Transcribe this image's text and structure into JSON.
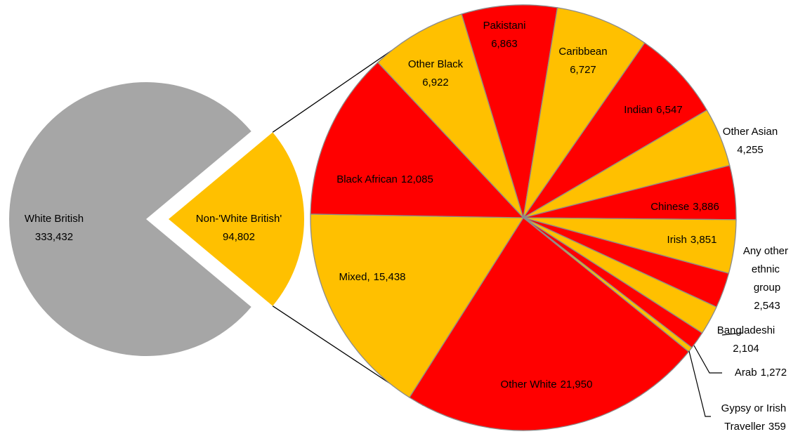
{
  "chart_data": {
    "type": "pie",
    "primary": {
      "categories": [
        "White British",
        "Non-'White British'"
      ],
      "values": [
        333432,
        94802
      ],
      "value_labels": [
        "333,432",
        "94,802"
      ],
      "colors": [
        "#a6a6a6",
        "#ffc000"
      ]
    },
    "secondary": {
      "categories": [
        "Other White",
        "Mixed,",
        "Black African",
        "Other Black",
        "Pakistani",
        "Caribbean",
        "Indian",
        "Other Asian",
        "Chinese",
        "Irish",
        "Any other ethnic group",
        "Bangladeshi",
        "Arab",
        "Gypsy or Irish Traveller"
      ],
      "values": [
        21950,
        15438,
        12085,
        6922,
        6863,
        6727,
        6547,
        4255,
        3886,
        3851,
        2543,
        2104,
        1272,
        359
      ],
      "value_labels": [
        "21,950",
        "15,438",
        "12,085",
        "6,922",
        "6,863",
        "6,727",
        "6,547",
        "4,255",
        "3,886",
        "3,851",
        "2,543",
        "2,104",
        "1,272",
        "359"
      ],
      "colors": [
        "#ff0000",
        "#ffc000",
        "#ff0000",
        "#ffc000",
        "#ff0000",
        "#ffc000",
        "#ff0000",
        "#ffc000",
        "#ff0000",
        "#ffc000",
        "#ff0000",
        "#ffc000",
        "#ff0000",
        "#ffc000"
      ]
    }
  }
}
